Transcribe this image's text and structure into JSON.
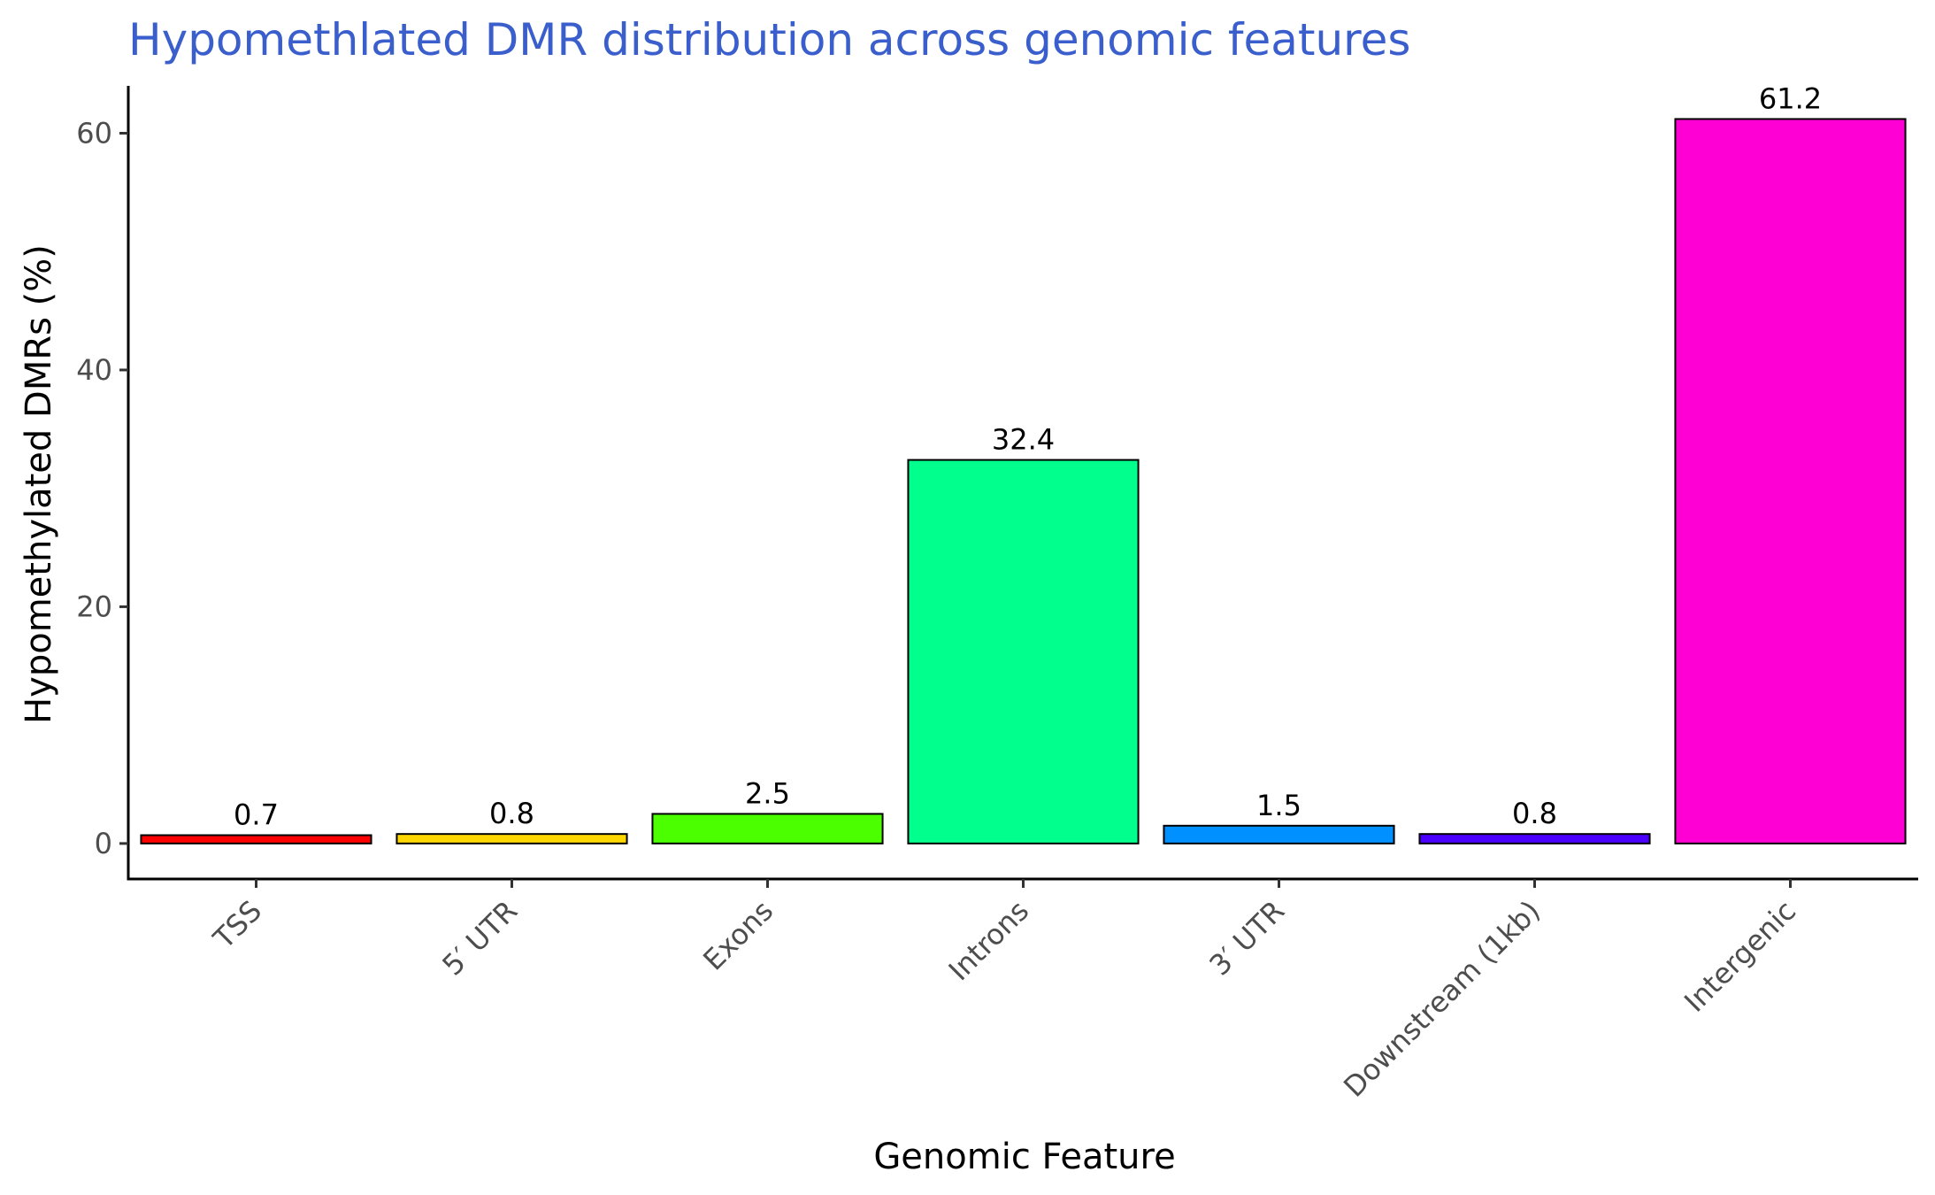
{
  "chart_data": {
    "type": "bar",
    "title": "Hypomethlated DMR distribution across genomic features",
    "xlabel": "Genomic Feature",
    "ylabel": "Hypomethylated DMRs (%)",
    "categories": [
      "TSS",
      "5′ UTR",
      "Exons",
      "Introns",
      "3′ UTR",
      "Downstream (1kb)",
      "Intergenic"
    ],
    "values": [
      0.7,
      0.8,
      2.5,
      32.4,
      1.5,
      0.8,
      61.2
    ],
    "value_labels": [
      "0.7",
      "0.8",
      "2.5",
      "32.4",
      "1.5",
      "0.8",
      "61.2"
    ],
    "colors": [
      "#ff0000",
      "#ffd700",
      "#4cff00",
      "#00ff8c",
      "#0090ff",
      "#4b00ff",
      "#ff00d4"
    ],
    "ylim": [
      -3,
      64
    ],
    "yticks": [
      0,
      20,
      40,
      60
    ],
    "ytick_labels": [
      "0",
      "20",
      "40",
      "60"
    ],
    "title_color": "#3a5fcd",
    "bar_outline_color": "#000000",
    "grid": false,
    "legend": "none"
  }
}
